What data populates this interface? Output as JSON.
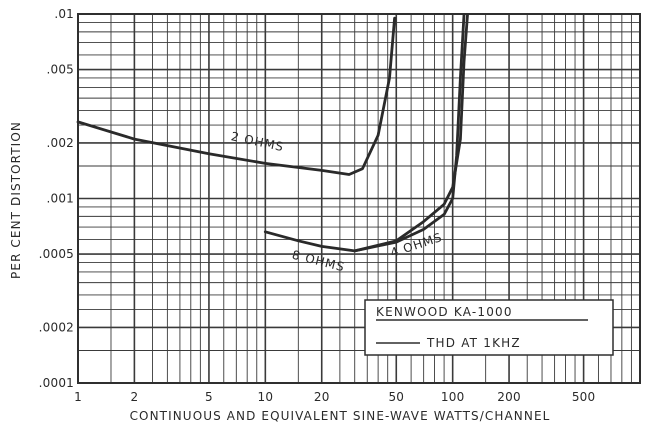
{
  "chart_data": {
    "type": "line",
    "title": "",
    "xlabel": "CONTINUOUS AND EQUIVALENT SINE-WAVE WATTS/CHANNEL",
    "ylabel": "PER CENT DISTORTION",
    "x_scale": "log",
    "y_scale": "log",
    "xlim": [
      1,
      1000
    ],
    "ylim": [
      0.0001,
      0.01
    ],
    "grid": true,
    "x_ticks": [
      {
        "value": 1,
        "label": "1"
      },
      {
        "value": 2,
        "label": "2"
      },
      {
        "value": 5,
        "label": "5"
      },
      {
        "value": 10,
        "label": "10"
      },
      {
        "value": 20,
        "label": "20"
      },
      {
        "value": 50,
        "label": "50"
      },
      {
        "value": 100,
        "label": "100"
      },
      {
        "value": 200,
        "label": "200"
      },
      {
        "value": 500,
        "label": "500"
      }
    ],
    "y_ticks": [
      {
        "value": 0.0001,
        "label": ".0001"
      },
      {
        "value": 0.0002,
        "label": ".0002"
      },
      {
        "value": 0.0005,
        "label": ".0005"
      },
      {
        "value": 0.001,
        "label": ".001"
      },
      {
        "value": 0.002,
        "label": ".002"
      },
      {
        "value": 0.005,
        "label": ".005"
      },
      {
        "value": 0.01,
        "label": ".01"
      }
    ],
    "series": [
      {
        "name": "2 OHMS",
        "x": [
          1,
          2,
          5,
          10,
          20,
          28,
          33,
          40,
          46,
          49
        ],
        "y": [
          0.0026,
          0.0021,
          0.00175,
          0.00155,
          0.00142,
          0.00135,
          0.00145,
          0.0022,
          0.0045,
          0.0095
        ]
      },
      {
        "name": "8 OHMS",
        "x": [
          10,
          15,
          20,
          30,
          50,
          70,
          90,
          100,
          105,
          110,
          115
        ],
        "y": [
          0.00066,
          0.00059,
          0.00055,
          0.00052,
          0.00058,
          0.00068,
          0.00082,
          0.001,
          0.0017,
          0.0045,
          0.0099
        ]
      },
      {
        "name": "4 OHMS",
        "x": [
          30,
          50,
          70,
          90,
          100,
          110,
          115,
          120
        ],
        "y": [
          0.00052,
          0.00059,
          0.00075,
          0.00093,
          0.00115,
          0.0021,
          0.0055,
          0.0099
        ]
      }
    ],
    "legend": {
      "position": "bottom-right",
      "title": "KENWOOD KA-1000",
      "entries": [
        "THD AT 1KHZ"
      ]
    }
  }
}
